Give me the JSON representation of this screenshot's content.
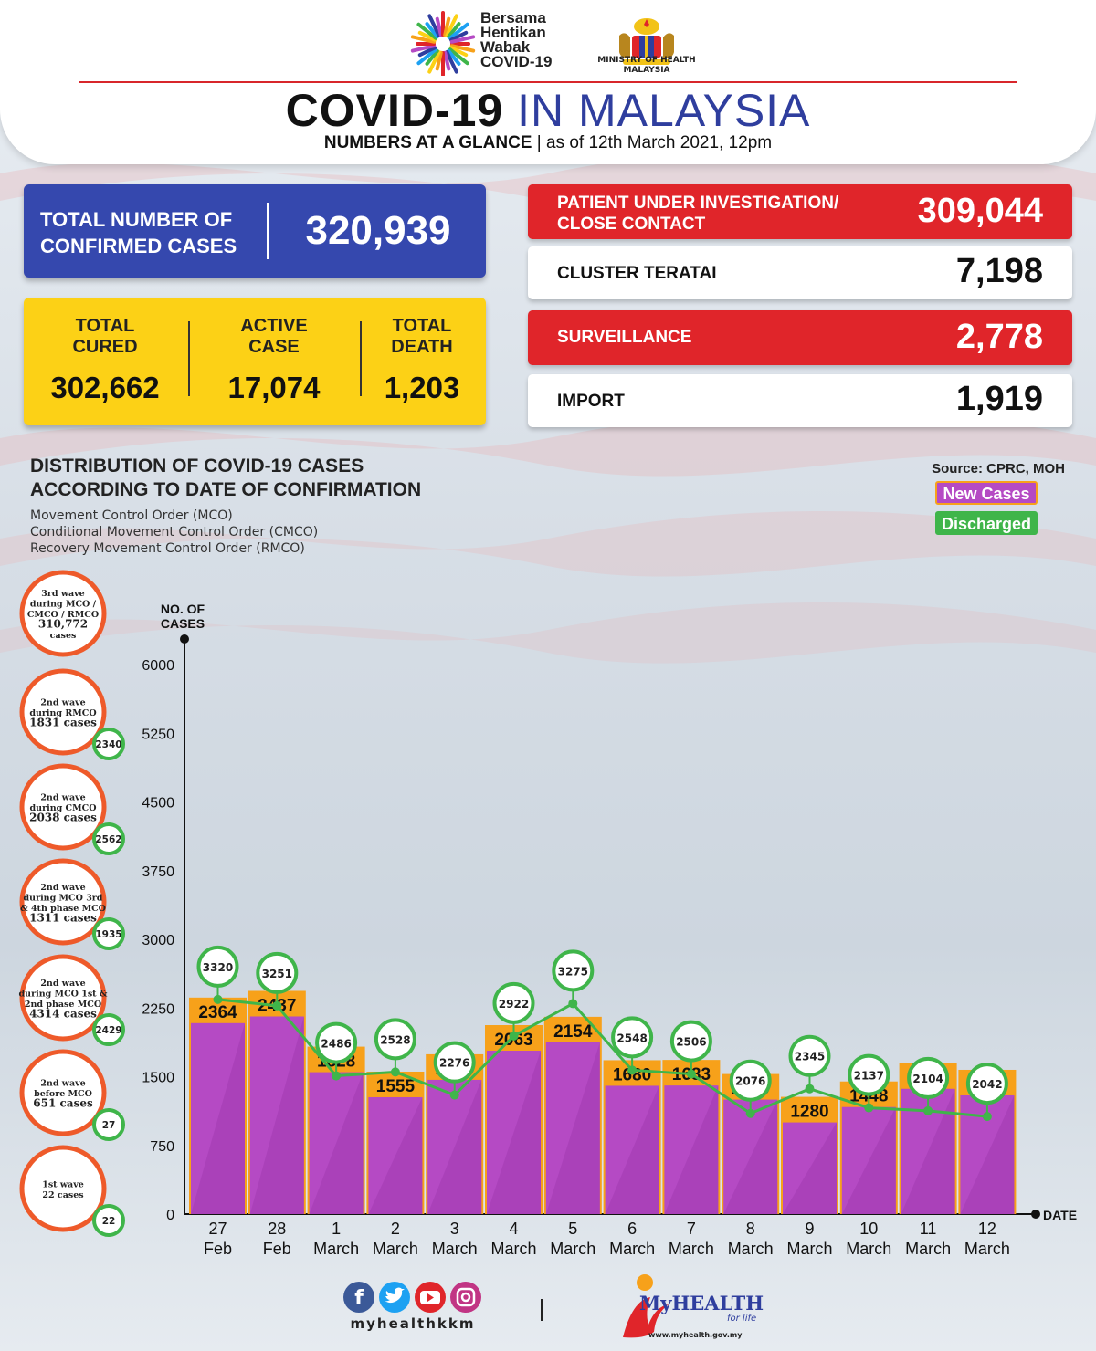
{
  "header": {
    "campaign_lines": [
      "Bersama",
      "Hentikan",
      "Wabak",
      "COVID-19"
    ],
    "ministry_lines": [
      "MINISTRY OF HEALTH",
      "MALAYSIA"
    ],
    "title_bold": "COVID-19",
    "title_rest": "IN MALAYSIA",
    "subtitle_bold": "NUMBERS AT A GLANCE",
    "subtitle_rest": "| as of 12th March 2021, 12pm"
  },
  "total": {
    "label_lines": [
      "TOTAL NUMBER OF",
      "CONFIRMED CASES"
    ],
    "value": "320,939"
  },
  "summary": [
    {
      "label_lines": [
        "TOTAL",
        "CURED"
      ],
      "value": "302,662"
    },
    {
      "label_lines": [
        "ACTIVE",
        "CASE"
      ],
      "value": "17,074"
    },
    {
      "label_lines": [
        "TOTAL",
        "DEATH"
      ],
      "value": "1,203"
    }
  ],
  "sources": [
    {
      "label_lines": [
        "PATIENT UNDER INVESTIGATION/",
        "CLOSE CONTACT"
      ],
      "value": "309,044",
      "style": "red"
    },
    {
      "label_lines": [
        "CLUSTER TERATAI"
      ],
      "value": "7,198",
      "style": "white"
    },
    {
      "label_lines": [
        "SURVEILLANCE"
      ],
      "value": "2,778",
      "style": "red"
    },
    {
      "label_lines": [
        "IMPORT"
      ],
      "value": "1,919",
      "style": "white"
    }
  ],
  "distribution": {
    "title_lines": [
      "DISTRIBUTION OF COVID-19 CASES",
      "ACCORDING TO DATE OF CONFIRMATION"
    ],
    "sub_lines": [
      "Movement Control Order (MCO)",
      "Conditional Movement Control Order (CMCO)",
      "Recovery Movement Control Order (RMCO)"
    ],
    "source": "Source: CPRC, MOH",
    "legend_new": "New Cases",
    "legend_discharged": "Discharged"
  },
  "waves": [
    {
      "lines": [
        "3rd wave",
        "during MCO /",
        "CMCO / RMCO",
        "310,772",
        "cases"
      ],
      "discharged": ""
    },
    {
      "lines": [
        "2nd wave",
        "during RMCO",
        "1831 cases"
      ],
      "discharged": "2340"
    },
    {
      "lines": [
        "2nd wave",
        "during CMCO",
        "2038 cases"
      ],
      "discharged": "2562"
    },
    {
      "lines": [
        "2nd wave",
        "during MCO 3rd",
        "& 4th phase MCO",
        "1311 cases"
      ],
      "discharged": "1935"
    },
    {
      "lines": [
        "2nd wave",
        "during MCO 1st &",
        "2nd phase MCO",
        "4314 cases"
      ],
      "discharged": "2429"
    },
    {
      "lines": [
        "2nd wave",
        "before MCO",
        "651 cases"
      ],
      "discharged": "27"
    },
    {
      "lines": [
        "1st wave",
        "22 cases"
      ],
      "discharged": "22"
    }
  ],
  "chart_data": {
    "type": "bar",
    "ylabel_lines": [
      "NO. OF",
      "CASES"
    ],
    "xlabel": "DATE",
    "ylim": [
      0,
      6000
    ],
    "yticks": [
      0,
      750,
      1500,
      2250,
      3000,
      3750,
      4500,
      5250,
      6000
    ],
    "categories": [
      [
        "27",
        "Feb"
      ],
      [
        "28",
        "Feb"
      ],
      [
        "1",
        "March"
      ],
      [
        "2",
        "March"
      ],
      [
        "3",
        "March"
      ],
      [
        "4",
        "March"
      ],
      [
        "5",
        "March"
      ],
      [
        "6",
        "March"
      ],
      [
        "7",
        "March"
      ],
      [
        "8",
        "March"
      ],
      [
        "9",
        "March"
      ],
      [
        "10",
        "March"
      ],
      [
        "11",
        "March"
      ],
      [
        "12",
        "March"
      ]
    ],
    "series": [
      {
        "name": "New Cases",
        "type": "bar",
        "color": "#b54ac4",
        "values": [
          2364,
          2437,
          1828,
          1555,
          1745,
          2063,
          2154,
          1680,
          1683,
          1529,
          1280,
          1448,
          1647,
          1575
        ]
      },
      {
        "name": "Discharged",
        "type": "line",
        "color": "#3fb54a",
        "values": [
          3320,
          3251,
          2486,
          2528,
          2276,
          2922,
          3275,
          2548,
          2506,
          2076,
          2345,
          2137,
          2104,
          2042
        ]
      }
    ]
  },
  "footer": {
    "social_handle": "myhealthkkm",
    "myhealth_word": "MyHEALTH",
    "myhealth_tag": "for life",
    "myhealth_url": "www.myhealth.gov.my"
  },
  "colors": {
    "blue": "#3548ae",
    "yellow": "#fcd116",
    "red": "#e0252a",
    "purple": "#b54ac4",
    "orange": "#f7a11a",
    "green": "#3fb54a"
  }
}
